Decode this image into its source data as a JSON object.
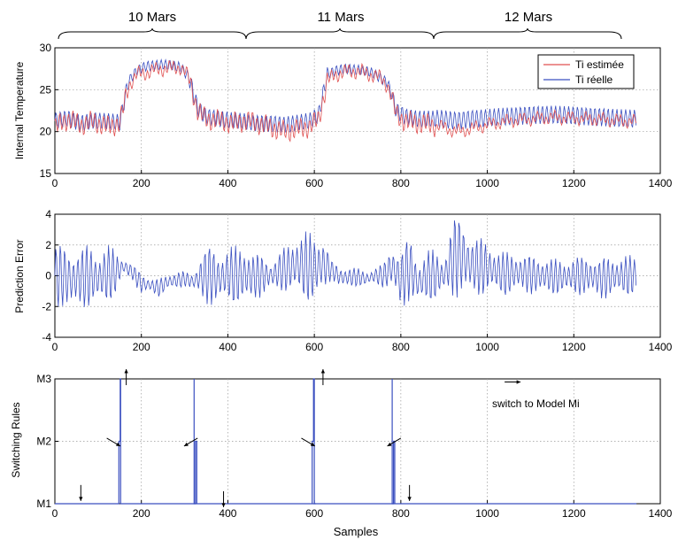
{
  "figure": {
    "day_labels": [
      "10 Mars",
      "11 Mars",
      "12 Mars"
    ],
    "xlabel": "Samples"
  },
  "colors": {
    "estimated": "#e05050",
    "real": "#3a4fc0",
    "error": "#3a4fc0",
    "switching": "#3a4fc0",
    "axis": "#000000",
    "grid": "#9a9a9a"
  },
  "chart_data": [
    {
      "id": "temperature",
      "type": "line",
      "ylabel": "Internal Temperature",
      "xlim": [
        0,
        1400
      ],
      "ylim": [
        15,
        30
      ],
      "xticks": [
        0,
        200,
        400,
        600,
        800,
        1000,
        1200,
        1400
      ],
      "yticks": [
        15,
        20,
        25,
        30
      ],
      "grid": true,
      "legend_position": "top-right",
      "series": [
        {
          "name": "Ti estimée",
          "color_key": "estimated",
          "x": [
            0,
            30,
            60,
            90,
            120,
            150,
            170,
            190,
            210,
            230,
            250,
            270,
            290,
            310,
            330,
            350,
            380,
            410,
            440,
            470,
            500,
            530,
            560,
            590,
            610,
            630,
            650,
            670,
            690,
            710,
            730,
            750,
            770,
            790,
            810,
            840,
            870,
            900,
            930,
            960,
            1000,
            1050,
            1100,
            1150,
            1200,
            1250,
            1300,
            1345
          ],
          "y": [
            20.5,
            21.5,
            20.8,
            21.2,
            20.6,
            21,
            25.5,
            26.8,
            27,
            27.3,
            27.5,
            27.6,
            27.7,
            26.5,
            22.5,
            21.5,
            21.3,
            21,
            21.3,
            21,
            20.5,
            20,
            20.3,
            20.6,
            21.5,
            26,
            26.8,
            27.1,
            27.2,
            27.1,
            26.8,
            26.5,
            25.5,
            22,
            21.2,
            21,
            20.8,
            20.5,
            20,
            20.3,
            20.8,
            21.3,
            21.5,
            21.7,
            21.6,
            21.5,
            21.3,
            21.2
          ]
        },
        {
          "name": "Ti réelle",
          "color_key": "real",
          "x": [
            0,
            30,
            60,
            90,
            120,
            150,
            170,
            190,
            210,
            230,
            250,
            270,
            290,
            310,
            330,
            350,
            380,
            410,
            440,
            470,
            500,
            530,
            560,
            590,
            610,
            630,
            650,
            670,
            690,
            710,
            730,
            750,
            770,
            790,
            810,
            840,
            870,
            900,
            930,
            960,
            1000,
            1050,
            1100,
            1150,
            1200,
            1250,
            1300,
            1345
          ],
          "y": [
            21.3,
            21.6,
            21,
            21.3,
            21.2,
            21.1,
            26,
            27.3,
            27.8,
            27.9,
            28,
            27.9,
            27.7,
            26.5,
            22.8,
            21.8,
            21.5,
            21.3,
            21.2,
            21,
            21,
            20.8,
            21,
            21.3,
            22,
            26.8,
            27.3,
            27.5,
            27.4,
            27.3,
            27.1,
            26.5,
            25.8,
            22.5,
            21.8,
            21.5,
            21.5,
            21.5,
            21.3,
            21.5,
            21.6,
            21.8,
            22,
            22,
            21.9,
            21.8,
            21.6,
            21.5
          ]
        }
      ]
    },
    {
      "id": "prediction_error",
      "type": "line",
      "ylabel": "Prediction Error",
      "xlim": [
        0,
        1400
      ],
      "ylim": [
        -4,
        4
      ],
      "xticks": [
        0,
        200,
        400,
        600,
        800,
        1000,
        1200,
        1400
      ],
      "yticks": [
        -4,
        -2,
        0,
        2,
        4
      ],
      "grid": true,
      "series": [
        {
          "color_key": "error",
          "x": [
            0,
            20,
            40,
            60,
            80,
            100,
            120,
            140,
            160,
            180,
            200,
            220,
            240,
            260,
            280,
            300,
            320,
            340,
            360,
            380,
            400,
            420,
            440,
            460,
            480,
            500,
            520,
            540,
            560,
            580,
            600,
            620,
            640,
            660,
            680,
            700,
            720,
            740,
            760,
            780,
            800,
            820,
            840,
            860,
            880,
            900,
            920,
            940,
            960,
            980,
            1000,
            1020,
            1040,
            1060,
            1080,
            1100,
            1120,
            1140,
            1160,
            1180,
            1200,
            1220,
            1240,
            1260,
            1280,
            1300,
            1320,
            1345
          ],
          "amplitude": [
            2.3,
            2.0,
            2.2,
            2.0,
            2.2,
            1.8,
            2.0,
            1.6,
            0.6,
            0.5,
            0.8,
            0.5,
            0.6,
            0.5,
            0.7,
            0.5,
            0.5,
            1.8,
            2.0,
            1.8,
            1.9,
            2.0,
            2.2,
            1.6,
            1.4,
            1.0,
            1.3,
            1.7,
            2.2,
            2.4,
            2.3,
            2.2,
            0.6,
            0.7,
            0.8,
            0.6,
            0.5,
            0.6,
            0.8,
            1.6,
            2.0,
            2.2,
            1.5,
            1.8,
            1.7,
            1.2,
            2.8,
            2.6,
            2.2,
            2.0,
            1.8,
            1.6,
            1.5,
            1.4,
            1.4,
            1.3,
            1.3,
            1.3,
            1.2,
            1.2,
            1.3,
            1.3,
            1.4,
            1.4,
            1.4,
            1.4,
            1.4,
            1.3
          ],
          "mean": [
            0,
            0,
            -0.3,
            -0.1,
            0,
            -0.2,
            0.1,
            0.2,
            0.6,
            0.2,
            -0.5,
            -0.6,
            -0.8,
            -0.4,
            -0.3,
            -0.2,
            -0.4,
            0,
            0,
            -0.2,
            0.1,
            0,
            0,
            0,
            0,
            0,
            0.3,
            0.5,
            0.7,
            0.6,
            0.5,
            0.7,
            0.4,
            -0.1,
            -0.1,
            -0.1,
            -0.2,
            0,
            0,
            0.6,
            -0.3,
            0.5,
            -0.5,
            0,
            0,
            0,
            1.2,
            1.3,
            0.7,
            0.6,
            0.5,
            0.3,
            0.1,
            0.2,
            0.2,
            0.1,
            0,
            0,
            -0.1,
            -0.1,
            0,
            0,
            0,
            -0.2,
            -0.1,
            0,
            0,
            0
          ]
        }
      ]
    },
    {
      "id": "switching_rules",
      "type": "line",
      "ylabel": "Switching Rules",
      "xlim": [
        0,
        1400
      ],
      "ylim": [
        1,
        3
      ],
      "xticks": [
        0,
        200,
        400,
        600,
        800,
        1000,
        1200,
        1400
      ],
      "yticks": [
        1,
        2,
        3
      ],
      "yticklabels": [
        "M1",
        "M2",
        "M3"
      ],
      "grid": true,
      "series": [
        {
          "color_key": "switching",
          "x": [
            0,
            148,
            148,
            151,
            151,
            152,
            152,
            155,
            155,
            1345
          ],
          "y": [
            1,
            1,
            2,
            2,
            3,
            3,
            1,
            1,
            1,
            1
          ]
        },
        {
          "color_key": "switching",
          "x": [
            322,
            322,
            325,
            325,
            328,
            328
          ],
          "y": [
            3,
            1,
            1,
            2,
            2,
            1
          ]
        },
        {
          "color_key": "switching",
          "x": [
            595,
            595,
            598,
            598,
            600,
            600,
            603,
            603
          ],
          "y": [
            1,
            2,
            2,
            3,
            3,
            1,
            1,
            1
          ]
        },
        {
          "color_key": "switching",
          "x": [
            780,
            780,
            783,
            783,
            786,
            786
          ],
          "y": [
            3,
            1,
            1,
            2,
            2,
            1
          ]
        }
      ],
      "annotations": [
        {
          "text": "switch to Model Mi"
        }
      ],
      "arrows": [
        {
          "x": 60,
          "y": 1.3,
          "dir": "down"
        },
        {
          "x": 165,
          "y": 2.9,
          "dir": "up"
        },
        {
          "x": 390,
          "y": 1.2,
          "dir": "down"
        },
        {
          "x": 620,
          "y": 2.9,
          "dir": "up"
        },
        {
          "x": 820,
          "y": 1.3,
          "dir": "down"
        },
        {
          "x": 120,
          "y": 2.05,
          "dir": "down-right"
        },
        {
          "x": 330,
          "y": 2.05,
          "dir": "down-left"
        },
        {
          "x": 570,
          "y": 2.05,
          "dir": "down-right"
        },
        {
          "x": 800,
          "y": 2.05,
          "dir": "down-left"
        },
        {
          "x": 1040,
          "y": 2.95,
          "dir": "right"
        }
      ]
    }
  ]
}
